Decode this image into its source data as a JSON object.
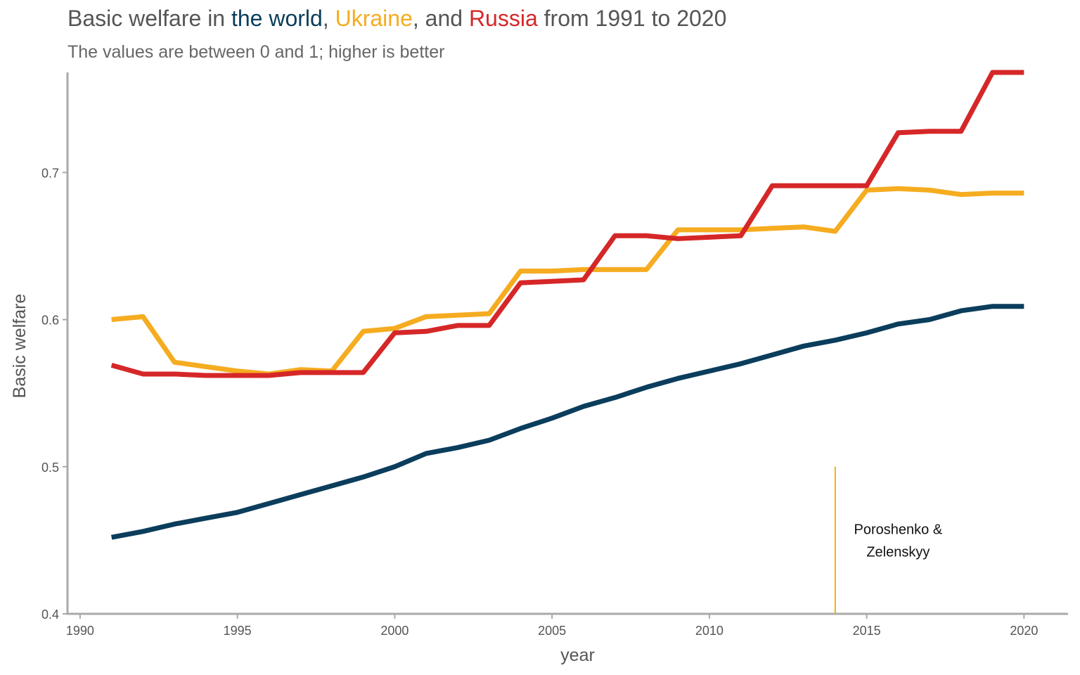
{
  "chart_data": {
    "type": "line",
    "title_parts": [
      {
        "text": "Basic welfare in ",
        "color": "#555555"
      },
      {
        "text": "the world",
        "color": "#0b3d5c"
      },
      {
        "text": ", ",
        "color": "#555555"
      },
      {
        "text": "Ukraine",
        "color": "#f5ac20"
      },
      {
        "text": ", and ",
        "color": "#555555"
      },
      {
        "text": "Russia",
        "color": "#d62728"
      },
      {
        "text": " from 1991 to 2020",
        "color": "#555555"
      }
    ],
    "subtitle": "The values are between 0 and 1; higher is better",
    "xlabel": "year",
    "ylabel": "Basic welfare",
    "xlim": [
      1989.6,
      2021.4
    ],
    "ylim": [
      0.4,
      0.768
    ],
    "x_ticks": [
      1990,
      1995,
      2000,
      2005,
      2010,
      2015,
      2020
    ],
    "y_ticks": [
      0.4,
      0.5,
      0.6,
      0.7
    ],
    "y_tick_labels": [
      "0.4",
      "0.5",
      "0.6",
      "0.7"
    ],
    "x": [
      1991,
      1992,
      1993,
      1994,
      1995,
      1996,
      1997,
      1998,
      1999,
      2000,
      2001,
      2002,
      2003,
      2004,
      2005,
      2006,
      2007,
      2008,
      2009,
      2010,
      2011,
      2012,
      2013,
      2014,
      2015,
      2016,
      2017,
      2018,
      2019,
      2020
    ],
    "series": [
      {
        "name": "the world",
        "color": "#0b3d5c",
        "values": [
          0.452,
          0.456,
          0.461,
          0.465,
          0.469,
          0.475,
          0.481,
          0.487,
          0.493,
          0.5,
          0.509,
          0.513,
          0.518,
          0.526,
          0.533,
          0.541,
          0.547,
          0.554,
          0.56,
          0.565,
          0.57,
          0.576,
          0.582,
          0.586,
          0.591,
          0.597,
          0.6,
          0.606,
          0.609,
          0.609
        ]
      },
      {
        "name": "Ukraine",
        "color": "#f5ac20",
        "values": [
          0.6,
          0.602,
          0.571,
          0.568,
          0.565,
          0.563,
          0.566,
          0.565,
          0.592,
          0.594,
          0.602,
          0.603,
          0.604,
          0.633,
          0.633,
          0.634,
          0.634,
          0.634,
          0.661,
          0.661,
          0.661,
          0.662,
          0.663,
          0.66,
          0.688,
          0.689,
          0.688,
          0.685,
          0.686,
          0.686
        ]
      },
      {
        "name": "Russia",
        "color": "#d62728",
        "values": [
          0.569,
          0.563,
          0.563,
          0.562,
          0.562,
          0.562,
          0.564,
          0.564,
          0.564,
          0.591,
          0.592,
          0.596,
          0.596,
          0.625,
          0.626,
          0.627,
          0.657,
          0.657,
          0.655,
          0.656,
          0.657,
          0.691,
          0.691,
          0.691,
          0.691,
          0.727,
          0.728,
          0.728,
          0.768,
          0.768
        ]
      }
    ],
    "annotations": [
      {
        "x": 2014,
        "y_from": 0.4,
        "y_to": 0.5,
        "color": "#f5ac20",
        "lines": [
          "Poroshenko &",
          "Zelenskyy"
        ],
        "label_x": 2016,
        "label_y": 0.45
      }
    ],
    "grid": false,
    "legend": "in title"
  }
}
